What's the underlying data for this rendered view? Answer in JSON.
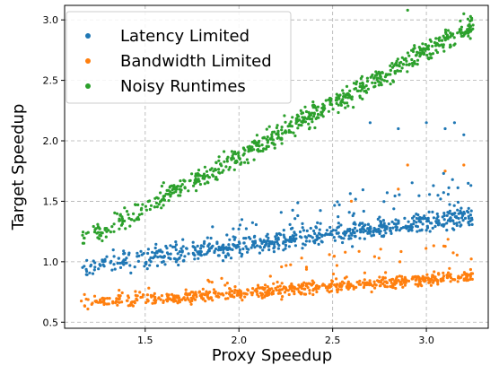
{
  "chart_data": {
    "type": "scatter",
    "xlabel": "Proxy Speedup",
    "ylabel": "Target Speedup",
    "xlim": [
      1.07,
      3.33
    ],
    "ylim": [
      0.45,
      3.12
    ],
    "xticks": [
      1.5,
      2.0,
      2.5,
      3.0
    ],
    "yticks": [
      0.5,
      1.0,
      1.5,
      2.0,
      2.5,
      3.0
    ],
    "xtick_labels": [
      "1.5",
      "2.0",
      "2.5",
      "3.0"
    ],
    "ytick_labels": [
      "0.5",
      "1.0",
      "1.5",
      "2.0",
      "2.5",
      "3.0"
    ],
    "grid": true,
    "legend_position": "top-left",
    "x_range_of_points": [
      1.15,
      3.25
    ],
    "series": [
      {
        "name": "Latency Limited",
        "color": "#1f77b4",
        "trend": {
          "at_x_min": 0.95,
          "at_x_max": 1.38
        },
        "spread": 0.08,
        "notable_outliers": [
          {
            "x": 2.7,
            "y": 2.15
          },
          {
            "x": 2.85,
            "y": 2.1
          },
          {
            "x": 3.0,
            "y": 2.15
          },
          {
            "x": 3.1,
            "y": 2.1
          },
          {
            "x": 3.15,
            "y": 2.15
          },
          {
            "x": 3.2,
            "y": 2.05
          }
        ]
      },
      {
        "name": "Bandwidth Limited",
        "color": "#ff7f0e",
        "trend": {
          "at_x_min": 0.65,
          "at_x_max": 0.88
        },
        "spread": 0.05,
        "notable_outliers": [
          {
            "x": 2.9,
            "y": 1.8
          },
          {
            "x": 3.1,
            "y": 1.75
          },
          {
            "x": 3.2,
            "y": 1.8
          },
          {
            "x": 2.6,
            "y": 1.5
          },
          {
            "x": 2.85,
            "y": 1.6
          }
        ]
      },
      {
        "name": "Noisy Runtimes",
        "color": "#2ca02c",
        "trend": {
          "at_x_min": 1.15,
          "at_x_max": 2.95
        },
        "spread": 0.09,
        "notable_outliers": [
          {
            "x": 2.9,
            "y": 3.08
          },
          {
            "x": 3.2,
            "y": 3.05
          }
        ]
      }
    ]
  }
}
